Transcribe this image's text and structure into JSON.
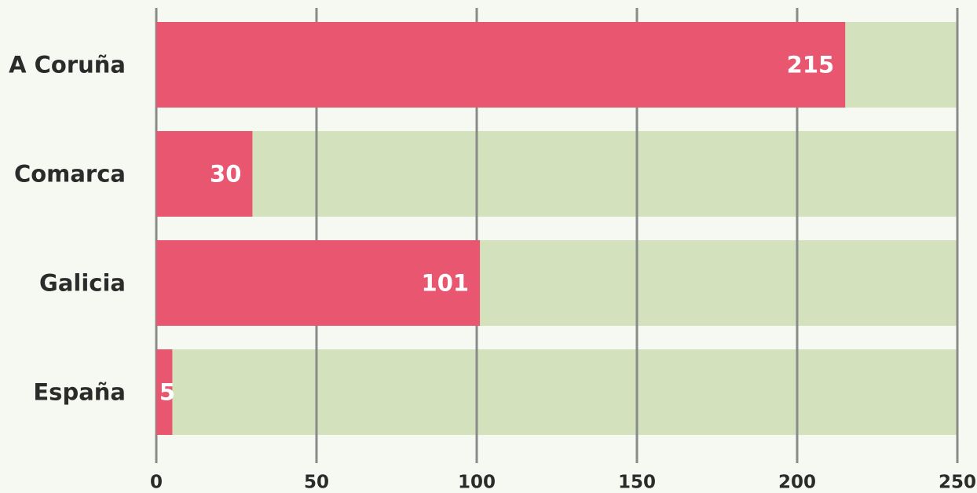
{
  "chart_data": {
    "type": "hbar",
    "categories": [
      "A Coruña",
      "Comarca",
      "Galicia",
      "España"
    ],
    "values": [
      215,
      30,
      101,
      5
    ],
    "color": "#e95670",
    "track_color": "#d3e1bd",
    "xlim": [
      0,
      250
    ],
    "xticks": [
      0,
      50,
      100,
      150,
      200,
      250
    ],
    "grid": true
  }
}
